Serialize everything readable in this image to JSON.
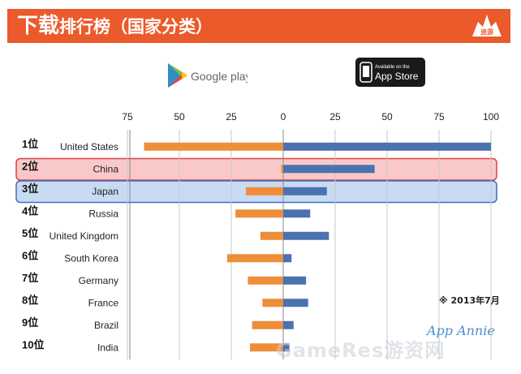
{
  "banner": {
    "title_big": "下载",
    "title_rest": "排行榜（国家分类）",
    "logo_text": "迪游",
    "color": "#eb5a2b"
  },
  "stores": {
    "google_play_label": "Google play",
    "app_store_top": "Available on the",
    "app_store_main": "App Store"
  },
  "note": "※ 2013年7月",
  "source_logo": "App Annie",
  "watermark": "GameRes游资网",
  "chart_data": {
    "type": "bar",
    "orientation": "horizontal-diverging",
    "categories": [
      "United States",
      "China",
      "Japan",
      "Russia",
      "United Kingdom",
      "South Korea",
      "Germany",
      "France",
      "Brazil",
      "India"
    ],
    "ranks": [
      "1位",
      "2位",
      "3位",
      "4位",
      "5位",
      "6位",
      "7位",
      "8位",
      "9位",
      "10位"
    ],
    "series": [
      {
        "store": "Google Play",
        "color": "#ee8d3a",
        "values": [
          67,
          1,
          18,
          23,
          11,
          27,
          17,
          10,
          15,
          16
        ]
      },
      {
        "store": "App Store",
        "color": "#4a72b0",
        "values": [
          100,
          44,
          21,
          13,
          22,
          4,
          11,
          12,
          5,
          3
        ]
      }
    ],
    "x_ticks_left": [
      "75",
      "50",
      "25",
      "0"
    ],
    "x_ticks_right": [
      "25",
      "50",
      "75",
      "100"
    ],
    "xlim_left": [
      0,
      75
    ],
    "xlim_right": [
      0,
      100
    ],
    "grid": true,
    "highlights": [
      {
        "row": 1,
        "fill": "#f9c9c9",
        "stroke": "#e0403e"
      },
      {
        "row": 2,
        "fill": "#c8dbf3",
        "stroke": "#3d6fc0"
      }
    ]
  }
}
